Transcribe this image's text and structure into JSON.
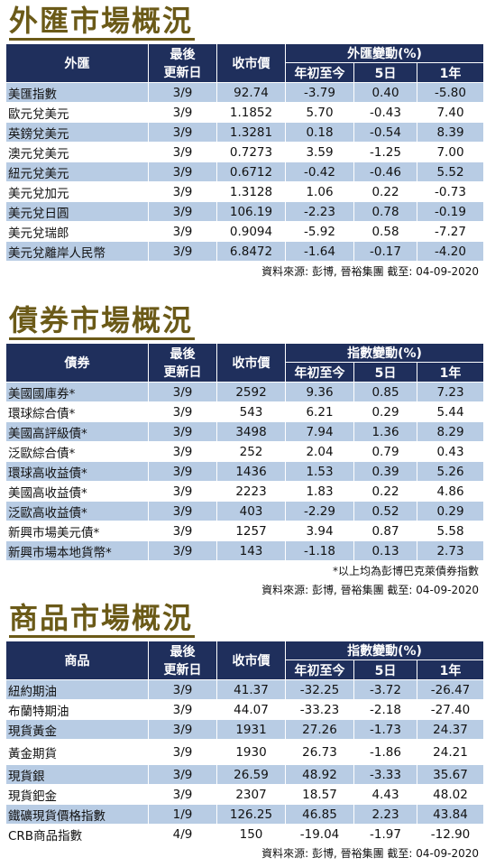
{
  "sections": [
    {
      "title": "外匯市場概況",
      "header": {
        "col1": "外匯",
        "col2a": "最後",
        "col2b": "更新日",
        "col3": "收市價",
        "group": "外匯變動(%)",
        "sub1": "年初至今",
        "sub2": "5日",
        "sub3": "1年"
      },
      "rows": [
        [
          "美匯指數",
          "3/9",
          "92.74",
          "-3.79",
          "0.40",
          "-5.80"
        ],
        [
          "歐元兌美元",
          "3/9",
          "1.1852",
          "5.70",
          "-0.43",
          "7.40"
        ],
        [
          "英鎊兌美元",
          "3/9",
          "1.3281",
          "0.18",
          "-0.54",
          "8.39"
        ],
        [
          "澳元兌美元",
          "3/9",
          "0.7273",
          "3.59",
          "-1.25",
          "7.00"
        ],
        [
          "紐元兌美元",
          "3/9",
          "0.6712",
          "-0.42",
          "-0.46",
          "5.52"
        ],
        [
          "美元兌加元",
          "3/9",
          "1.3128",
          "1.06",
          "0.22",
          "-0.73"
        ],
        [
          "美元兌日圓",
          "3/9",
          "106.19",
          "-2.23",
          "0.78",
          "-0.19"
        ],
        [
          "美元兌瑞郎",
          "3/9",
          "0.9094",
          "-5.92",
          "0.58",
          "-7.27"
        ],
        [
          "美元兌離岸人民幣",
          "3/9",
          "6.8472",
          "-1.64",
          "-0.17",
          "-4.20"
        ]
      ],
      "source": "資料來源: 彭博, 晉裕集團 截至: 04-09-2020"
    },
    {
      "title": "債券市場概況",
      "header": {
        "col1": "債券",
        "col2a": "最後",
        "col2b": "更新日",
        "col3": "收市價",
        "group": "指數變動(%)",
        "sub1": "年初至今",
        "sub2": "5日",
        "sub3": "1年"
      },
      "rows": [
        [
          "美國國庫券*",
          "3/9",
          "2592",
          "9.36",
          "0.85",
          "7.23"
        ],
        [
          "環球綜合債*",
          "3/9",
          "543",
          "6.21",
          "0.29",
          "5.44"
        ],
        [
          "美國高評級債*",
          "3/9",
          "3498",
          "7.94",
          "1.36",
          "8.29"
        ],
        [
          "泛歐綜合債*",
          "3/9",
          "252",
          "2.04",
          "0.79",
          "0.43"
        ],
        [
          "環球高收益債*",
          "3/9",
          "1436",
          "1.53",
          "0.39",
          "5.26"
        ],
        [
          "美國高收益債*",
          "3/9",
          "2223",
          "1.83",
          "0.22",
          "4.86"
        ],
        [
          "泛歐高收益債*",
          "3/9",
          "403",
          "-2.29",
          "0.52",
          "0.29"
        ],
        [
          "新興市場美元債*",
          "3/9",
          "1257",
          "3.94",
          "0.87",
          "5.58"
        ],
        [
          "新興市場本地貨幣*",
          "3/9",
          "143",
          "-1.18",
          "0.13",
          "2.73"
        ]
      ],
      "note": "*以上均為彭博巴克萊債券指數",
      "source": "資料來源: 彭博, 晉裕集團 截至: 04-09-2020"
    },
    {
      "title": "商品市場概況",
      "header": {
        "col1": "商品",
        "col2a": "最後",
        "col2b": "更新日",
        "col3": "收市價",
        "group": "指數變動(%)",
        "sub1": "年初至今",
        "sub2": "5日",
        "sub3": "1年"
      },
      "rows": [
        [
          "紐約期油",
          "3/9",
          "41.37",
          "-32.25",
          "-3.72",
          "-26.47"
        ],
        [
          "布蘭特期油",
          "3/9",
          "44.07",
          "-33.23",
          "-2.18",
          "-27.40"
        ],
        [
          "現貨黃金",
          "3/9",
          "1931",
          "27.26",
          "-1.73",
          "24.37"
        ],
        [
          "黃金期貨",
          "3/9",
          "1930",
          "26.73",
          "-1.86",
          "24.21"
        ],
        [
          "現貨銀",
          "3/9",
          "26.59",
          "48.92",
          "-3.33",
          "35.67"
        ],
        [
          "現貨鈀金",
          "3/9",
          "2307",
          "18.57",
          "4.43",
          "48.02"
        ],
        [
          "鐵礦現貨價格指數",
          "1/9",
          "126.25",
          "46.85",
          "2.23",
          "43.84"
        ],
        [
          "CRB商品指數",
          "4/9",
          "150",
          "-19.04",
          "-1.97",
          "-12.90"
        ]
      ],
      "source": "資料來源: 彭博, 晉裕集團 截至: 04-09-2020"
    }
  ]
}
